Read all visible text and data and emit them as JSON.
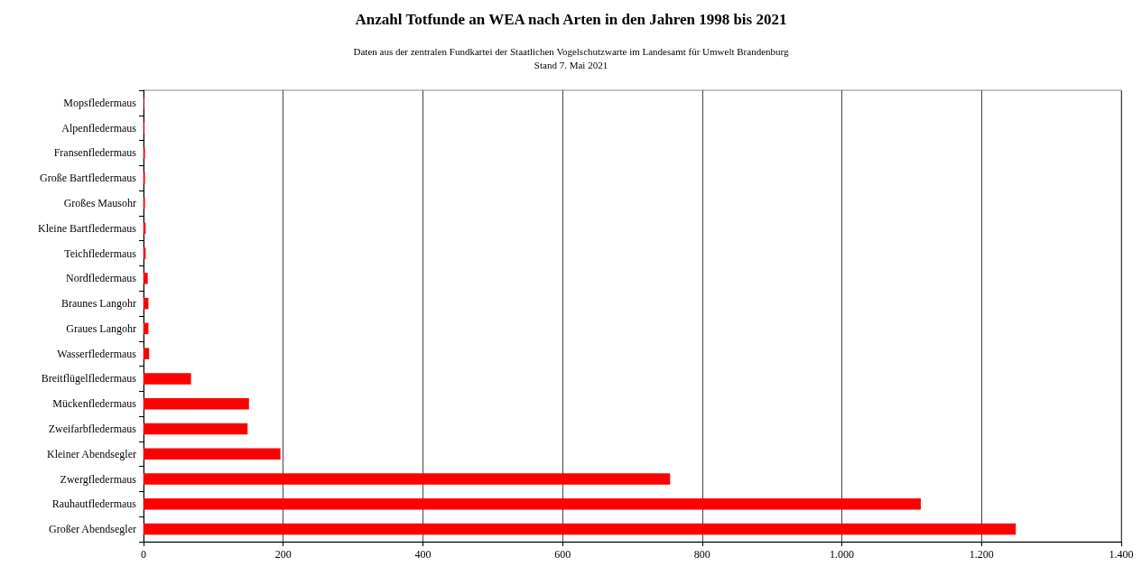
{
  "chart_data": {
    "type": "bar",
    "orientation": "horizontal",
    "title": "Anzahl Totfunde an WEA nach Arten in den Jahren 1998 bis 2021",
    "subtitle": "Daten aus der zentralen Fundkartei der Staatlichen Vogelschutzwarte im Landesamt für Umwelt Brandenburg\nStand 7. Mai 2021",
    "categories": [
      "Mopsfledermaus",
      "Alpenfledermaus",
      "Fransenfledermaus",
      "Große Bartfledermaus",
      "Großes Mausohr",
      "Kleine Bartfledermaus",
      "Teichfledermaus",
      "Nordfledermaus",
      "Braunes Langohr",
      "Graues Langohr",
      "Wasserfledermaus",
      "Breitflügelfledermaus",
      "Mückenfledermaus",
      "Zweifarbfledermaus",
      "Kleiner Abendsegler",
      "Zwergfledermaus",
      "Rauhautfledermaus",
      "Großer Abendsegler"
    ],
    "values": [
      1,
      1,
      2,
      2,
      2,
      3,
      3,
      6,
      7,
      7,
      8,
      68,
      151,
      149,
      196,
      754,
      1113,
      1249
    ],
    "color": "#ff0000",
    "xlim": [
      0,
      1400
    ],
    "xticks": [
      0,
      200,
      400,
      600,
      800,
      {
        "value": 1000,
        "label": "1.000"
      },
      {
        "value": 1200,
        "label": "1.200"
      },
      {
        "value": 1400,
        "label": "1.400"
      }
    ],
    "grid": "x"
  }
}
